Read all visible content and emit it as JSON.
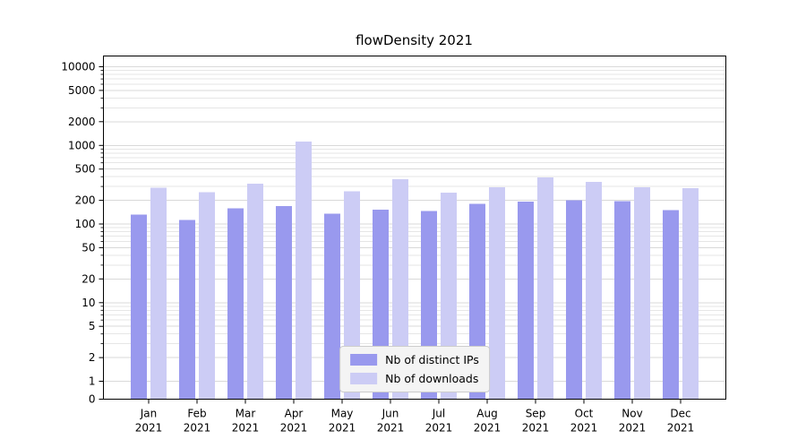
{
  "colors": {
    "ips": "#9999ee",
    "downloads": "#ccccf5",
    "grid_major": "#d9d9d9",
    "grid_minor": "#e6e6e6",
    "axis": "#000000",
    "legend_bg": "#f4f4f4",
    "legend_border": "#cccccc"
  },
  "chart_data": {
    "type": "bar",
    "title": "flowDensity 2021",
    "xlabel": "",
    "ylabel": "",
    "yscale": "symlog",
    "ylim": [
      0,
      13000
    ],
    "grid": "on",
    "legend_position": "lower center",
    "yticks": [
      0,
      1,
      2,
      5,
      10,
      20,
      50,
      100,
      200,
      500,
      1000,
      2000,
      5000,
      10000
    ],
    "categories": [
      "Jan 2021",
      "Feb 2021",
      "Mar 2021",
      "Apr 2021",
      "May 2021",
      "Jun 2021",
      "Jul 2021",
      "Aug 2021",
      "Sep 2021",
      "Oct 2021",
      "Nov 2021",
      "Dec 2021"
    ],
    "series": [
      {
        "name": "Nb of distinct IPs",
        "color": "#9999ee",
        "values": [
          132,
          112,
          158,
          170,
          135,
          152,
          146,
          180,
          192,
          200,
          195,
          150
        ]
      },
      {
        "name": "Nb of downloads",
        "color": "#ccccf5",
        "values": [
          290,
          255,
          325,
          1120,
          260,
          370,
          252,
          295,
          390,
          345,
          295,
          285
        ]
      }
    ]
  }
}
